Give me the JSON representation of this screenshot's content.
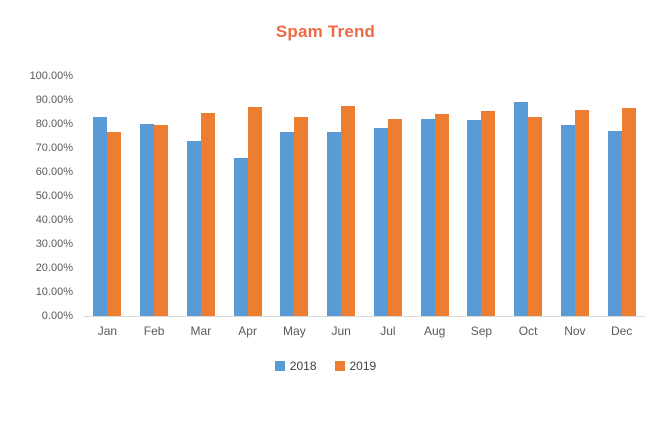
{
  "colors": {
    "title": "#ED6A45",
    "series_2018": "#5B9BD5",
    "series_2019": "#ED7D31",
    "axis_text": "#595959",
    "legend_text": "#404040",
    "axis_line": "#D9D9D9",
    "background": "#FFFFFF"
  },
  "chart_data": {
    "type": "bar",
    "title": "Spam Trend",
    "xlabel": "",
    "ylabel": "",
    "grid": false,
    "legend_position": "bottom",
    "ylim": [
      0,
      100
    ],
    "ytick_step": 10,
    "ytick_labels": [
      "0.00%",
      "10.00%",
      "20.00%",
      "30.00%",
      "40.00%",
      "50.00%",
      "60.00%",
      "70.00%",
      "80.00%",
      "90.00%",
      "100.00%"
    ],
    "categories": [
      "Jan",
      "Feb",
      "Mar",
      "Apr",
      "May",
      "Jun",
      "Jul",
      "Aug",
      "Sep",
      "Oct",
      "Nov",
      "Dec"
    ],
    "series": [
      {
        "name": "2018",
        "color": "#5B9BD5",
        "values": [
          83,
          80,
          73,
          66,
          76.5,
          76.5,
          78.5,
          82,
          81.5,
          89,
          79.5,
          77
        ]
      },
      {
        "name": "2019",
        "color": "#ED7D31",
        "values": [
          76.5,
          79.5,
          84.5,
          87,
          83,
          87.5,
          82,
          84,
          85.5,
          83,
          86,
          86.5
        ]
      }
    ]
  }
}
